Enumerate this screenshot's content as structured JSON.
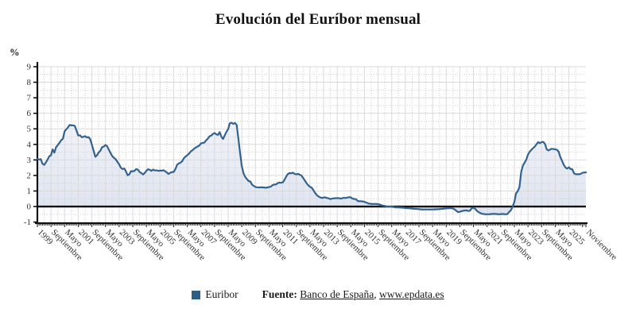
{
  "title": "Evolución del Euríbor mensual",
  "legend": {
    "series_label": "Euribor"
  },
  "source": {
    "prefix": "Fuente:",
    "link_banco": "Banco de España",
    "separator": ", ",
    "link_epdata": "www.epdata.es"
  },
  "colors": {
    "line": "#33628e",
    "legend_swatch": "#2c5d85",
    "area_top": "rgba(120,140,185,0.10)",
    "area_bottom": "rgba(125,148,200,0.26)",
    "grid_major": "#d9d9d9",
    "grid_minor": "#cfcfcf",
    "axis": "#111111",
    "zero_line": "#111111",
    "tick_text": "#333333"
  },
  "y_axis": {
    "unit_label": "%",
    "min": -1,
    "max": 9,
    "step": 1
  },
  "chart_data": {
    "type": "area",
    "title": "Evolución del Euríbor mensual",
    "xlabel": "",
    "ylabel": "%",
    "ylim": [
      -1,
      9
    ],
    "x_start": "Enero 1999",
    "x_end": "Noviembre 2025",
    "frequency": "monthly",
    "grid": true,
    "legend_position": "bottom",
    "x_tick_rotation": 45,
    "x_ticks": [
      [
        0,
        "1999"
      ],
      [
        8,
        "Septiembre"
      ],
      [
        16,
        "Mayo"
      ],
      [
        24,
        "2001"
      ],
      [
        32,
        "Septiembre"
      ],
      [
        40,
        "Mayo"
      ],
      [
        48,
        "2003"
      ],
      [
        56,
        "Septiembre"
      ],
      [
        64,
        "Mayo"
      ],
      [
        72,
        "2005"
      ],
      [
        80,
        "Septiembre"
      ],
      [
        88,
        "Mayo"
      ],
      [
        96,
        "2007"
      ],
      [
        104,
        "Septiembre"
      ],
      [
        112,
        "Mayo"
      ],
      [
        120,
        "2009"
      ],
      [
        128,
        "Septiembre"
      ],
      [
        136,
        "Mayo"
      ],
      [
        144,
        "2011"
      ],
      [
        152,
        "Septiembre"
      ],
      [
        160,
        "Mayo"
      ],
      [
        168,
        "2013"
      ],
      [
        176,
        "Septiembre"
      ],
      [
        184,
        "Mayo"
      ],
      [
        192,
        "2015"
      ],
      [
        200,
        "Septiembre"
      ],
      [
        208,
        "Mayo"
      ],
      [
        216,
        "2017"
      ],
      [
        224,
        "Septiembre"
      ],
      [
        232,
        "Mayo"
      ],
      [
        240,
        "2019"
      ],
      [
        248,
        "Septiembre"
      ],
      [
        256,
        "Mayo"
      ],
      [
        264,
        "2021"
      ],
      [
        272,
        "Septiembre"
      ],
      [
        280,
        "Mayo"
      ],
      [
        288,
        "2023"
      ],
      [
        296,
        "Septiembre"
      ],
      [
        304,
        "Mayo"
      ],
      [
        312,
        "2025"
      ],
      [
        322,
        "Noviembre"
      ]
    ],
    "series": [
      {
        "name": "Euribor",
        "values": [
          3.06,
          3.03,
          3.05,
          2.76,
          2.68,
          2.84,
          3.03,
          3.24,
          3.3,
          3.68,
          3.47,
          3.83,
          3.95,
          4.11,
          4.27,
          4.36,
          4.85,
          4.97,
          5.1,
          5.25,
          5.22,
          5.22,
          5.19,
          4.88,
          4.57,
          4.59,
          4.47,
          4.48,
          4.53,
          4.45,
          4.47,
          4.35,
          3.98,
          3.6,
          3.2,
          3.3,
          3.48,
          3.59,
          3.82,
          3.86,
          3.96,
          3.87,
          3.64,
          3.44,
          3.24,
          3.13,
          3.04,
          2.87,
          2.71,
          2.5,
          2.41,
          2.45,
          2.26,
          2.01,
          2.08,
          2.28,
          2.26,
          2.3,
          2.41,
          2.38,
          2.22,
          2.16,
          2.06,
          2.16,
          2.3,
          2.4,
          2.36,
          2.3,
          2.38,
          2.32,
          2.33,
          2.3,
          2.31,
          2.31,
          2.34,
          2.27,
          2.19,
          2.1,
          2.17,
          2.22,
          2.22,
          2.41,
          2.68,
          2.78,
          2.83,
          2.91,
          3.11,
          3.22,
          3.31,
          3.4,
          3.54,
          3.62,
          3.72,
          3.8,
          3.86,
          3.92,
          4.06,
          4.09,
          4.11,
          4.25,
          4.37,
          4.51,
          4.56,
          4.67,
          4.73,
          4.65,
          4.61,
          4.79,
          4.5,
          4.35,
          4.59,
          4.82,
          4.99,
          5.36,
          5.39,
          5.32,
          5.38,
          5.25,
          4.35,
          3.45,
          2.62,
          2.14,
          1.91,
          1.77,
          1.64,
          1.61,
          1.41,
          1.33,
          1.26,
          1.24,
          1.23,
          1.24,
          1.23,
          1.23,
          1.21,
          1.23,
          1.25,
          1.28,
          1.37,
          1.42,
          1.42,
          1.5,
          1.54,
          1.53,
          1.55,
          1.71,
          1.92,
          2.09,
          2.15,
          2.14,
          2.18,
          2.1,
          2.07,
          2.11,
          2.04,
          2.0,
          1.84,
          1.68,
          1.5,
          1.37,
          1.27,
          1.22,
          1.06,
          0.88,
          0.74,
          0.65,
          0.59,
          0.55,
          0.58,
          0.59,
          0.55,
          0.53,
          0.48,
          0.51,
          0.53,
          0.54,
          0.54,
          0.54,
          0.51,
          0.54,
          0.56,
          0.55,
          0.58,
          0.6,
          0.59,
          0.51,
          0.49,
          0.47,
          0.36,
          0.34,
          0.34,
          0.33,
          0.3,
          0.26,
          0.21,
          0.18,
          0.17,
          0.16,
          0.17,
          0.16,
          0.15,
          0.13,
          0.08,
          0.06,
          0.04,
          -0.01,
          -0.01,
          -0.01,
          -0.01,
          -0.03,
          -0.06,
          -0.05,
          -0.06,
          -0.07,
          -0.07,
          -0.08,
          -0.1,
          -0.11,
          -0.11,
          -0.12,
          -0.13,
          -0.15,
          -0.15,
          -0.16,
          -0.17,
          -0.18,
          -0.19,
          -0.19,
          -0.19,
          -0.19,
          -0.19,
          -0.19,
          -0.19,
          -0.18,
          -0.18,
          -0.17,
          -0.17,
          -0.15,
          -0.15,
          -0.13,
          -0.12,
          -0.11,
          -0.11,
          -0.11,
          -0.13,
          -0.19,
          -0.28,
          -0.36,
          -0.34,
          -0.3,
          -0.27,
          -0.26,
          -0.25,
          -0.29,
          -0.27,
          -0.11,
          -0.08,
          -0.15,
          -0.28,
          -0.36,
          -0.42,
          -0.47,
          -0.48,
          -0.5,
          -0.5,
          -0.5,
          -0.49,
          -0.48,
          -0.48,
          -0.48,
          -0.49,
          -0.5,
          -0.49,
          -0.48,
          -0.49,
          -0.5,
          -0.48,
          -0.34,
          -0.24,
          0.01,
          0.29,
          0.85,
          0.99,
          1.25,
          2.23,
          2.63,
          2.83,
          3.02,
          3.34,
          3.53,
          3.65,
          3.76,
          3.86,
          4.01,
          4.15,
          4.07,
          4.15,
          4.16,
          4.02,
          3.68,
          3.61,
          3.67,
          3.72,
          3.7,
          3.68,
          3.65,
          3.53,
          3.17,
          2.94,
          2.69,
          2.51,
          2.44,
          2.53,
          2.41,
          2.4,
          2.14,
          2.08,
          2.08,
          2.08,
          2.11,
          2.17,
          2.19,
          2.2
        ]
      }
    ]
  }
}
